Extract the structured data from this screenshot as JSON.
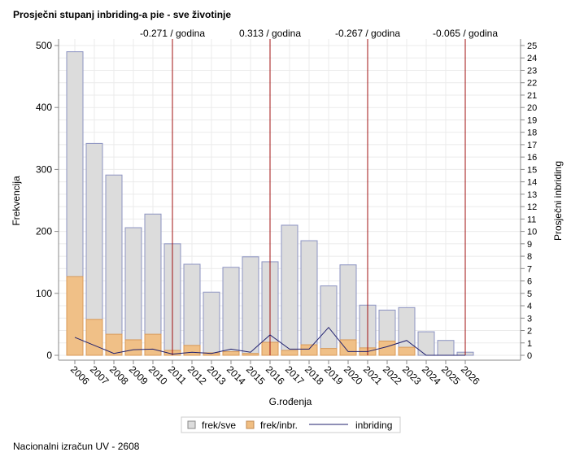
{
  "chart_data": {
    "type": "bar",
    "title": "Prosječni stupanj inbriding-a pie - sve životinje",
    "footnote": "Nacionalni izračun UV - 2608",
    "xlabel": "G.rođenja",
    "ylabel": "Frekvencija",
    "y2label": "Prosječni inbriding",
    "ylim": [
      0,
      500
    ],
    "y2lim": [
      0,
      25
    ],
    "yticks": [
      0,
      100,
      200,
      300,
      400,
      500
    ],
    "grid": true,
    "legend_position": "bottom",
    "categories": [
      "2006",
      "2007",
      "2008",
      "2009",
      "2010",
      "2011",
      "2012",
      "2013",
      "2014",
      "2015",
      "2016",
      "2017",
      "2018",
      "2019",
      "2020",
      "2021",
      "2022",
      "2023",
      "2024",
      "2025",
      "2026"
    ],
    "series": [
      {
        "name": "frek/sve",
        "type": "bar",
        "color": "#dcdcdc",
        "values": [
          490,
          342,
          291,
          206,
          228,
          180,
          147,
          102,
          142,
          159,
          151,
          210,
          185,
          112,
          146,
          81,
          73,
          77,
          38,
          24,
          5
        ]
      },
      {
        "name": "frek/inbr.",
        "type": "bar",
        "color": "#f0be82",
        "values": [
          127,
          58,
          34,
          25,
          34,
          8,
          16,
          4,
          6,
          3,
          21,
          8,
          17,
          11,
          25,
          12,
          23,
          13,
          0,
          0,
          0
        ]
      },
      {
        "name": "inbriding",
        "type": "line",
        "axis": "right",
        "color": "#1f1f6e",
        "values": [
          1.45,
          0.8,
          0.15,
          0.45,
          0.5,
          0.1,
          0.25,
          0.15,
          0.5,
          0.25,
          1.65,
          0.5,
          0.5,
          2.25,
          0.3,
          0.3,
          0.7,
          1.2,
          0,
          0,
          0
        ]
      }
    ],
    "reference_lines": [
      {
        "at": "2011",
        "label": "-0.271 / godina",
        "color": "#a01010"
      },
      {
        "at": "2016",
        "label": "0.313 / godina",
        "color": "#a01010"
      },
      {
        "at": "2021",
        "label": "-0.267 / godina",
        "color": "#a01010"
      },
      {
        "at": "2026",
        "label": "-0.065 / godina",
        "color": "#a01010"
      }
    ]
  }
}
